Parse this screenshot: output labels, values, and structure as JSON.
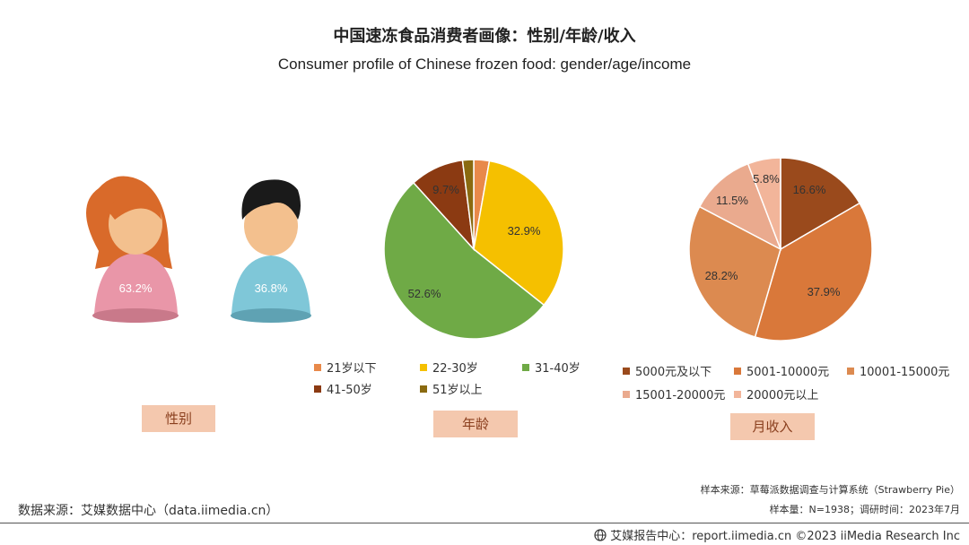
{
  "title_zh": "中国速冻食品消费者画像：性别/年龄/收入",
  "title_en": "Consumer profile of Chinese frozen food: gender/age/income",
  "chart_data": [
    {
      "type": "pictogram",
      "tag": "性别",
      "values": [
        {
          "label": "63.2%",
          "value": 63.2,
          "color": "#e996a8"
        },
        {
          "label": "36.8%",
          "value": 36.8,
          "color": "#7fc7d8"
        }
      ]
    },
    {
      "type": "pie",
      "tag": "年龄",
      "start_angle": 90,
      "slices": [
        {
          "name": "21岁以下",
          "value": 2.8,
          "label": "2.8%",
          "color": "#e8894a"
        },
        {
          "name": "22-30岁",
          "value": 32.9,
          "label": "32.9%",
          "color": "#f5c000"
        },
        {
          "name": "31-40岁",
          "value": 52.6,
          "label": "52.6%",
          "color": "#6faa46"
        },
        {
          "name": "41-50岁",
          "value": 9.7,
          "label": "9.7%",
          "color": "#8b3a12"
        },
        {
          "name": "51岁以上",
          "value": 2.0,
          "label": "2.0%",
          "color": "#8a6a10"
        }
      ]
    },
    {
      "type": "pie",
      "tag": "月收入",
      "start_angle": 90,
      "slices": [
        {
          "name": "5000元及以下",
          "value": 16.6,
          "label": "16.6%",
          "color": "#9a4a1c"
        },
        {
          "name": "5001-10000元",
          "value": 37.9,
          "label": "37.9%",
          "color": "#d9783a"
        },
        {
          "name": "10001-15000元",
          "value": 28.2,
          "label": "28.2%",
          "color": "#dc8a50"
        },
        {
          "name": "15001-20000元",
          "value": 11.5,
          "label": "11.5%",
          "color": "#eaaa8e"
        },
        {
          "name": "20000元以上",
          "value": 5.8,
          "label": "5.8%",
          "color": "#f2b59a"
        }
      ]
    }
  ],
  "source_left": "数据来源：艾媒数据中心（data.iimedia.cn）",
  "sample_source": "样本来源：草莓派数据调查与计算系统（Strawberry Pie）",
  "sample_info": "样本量：N=1938；调研时间：2023年7月",
  "footer_text": "艾媒报告中心：report.iimedia.cn  ©2023  iiMedia Research Inc"
}
